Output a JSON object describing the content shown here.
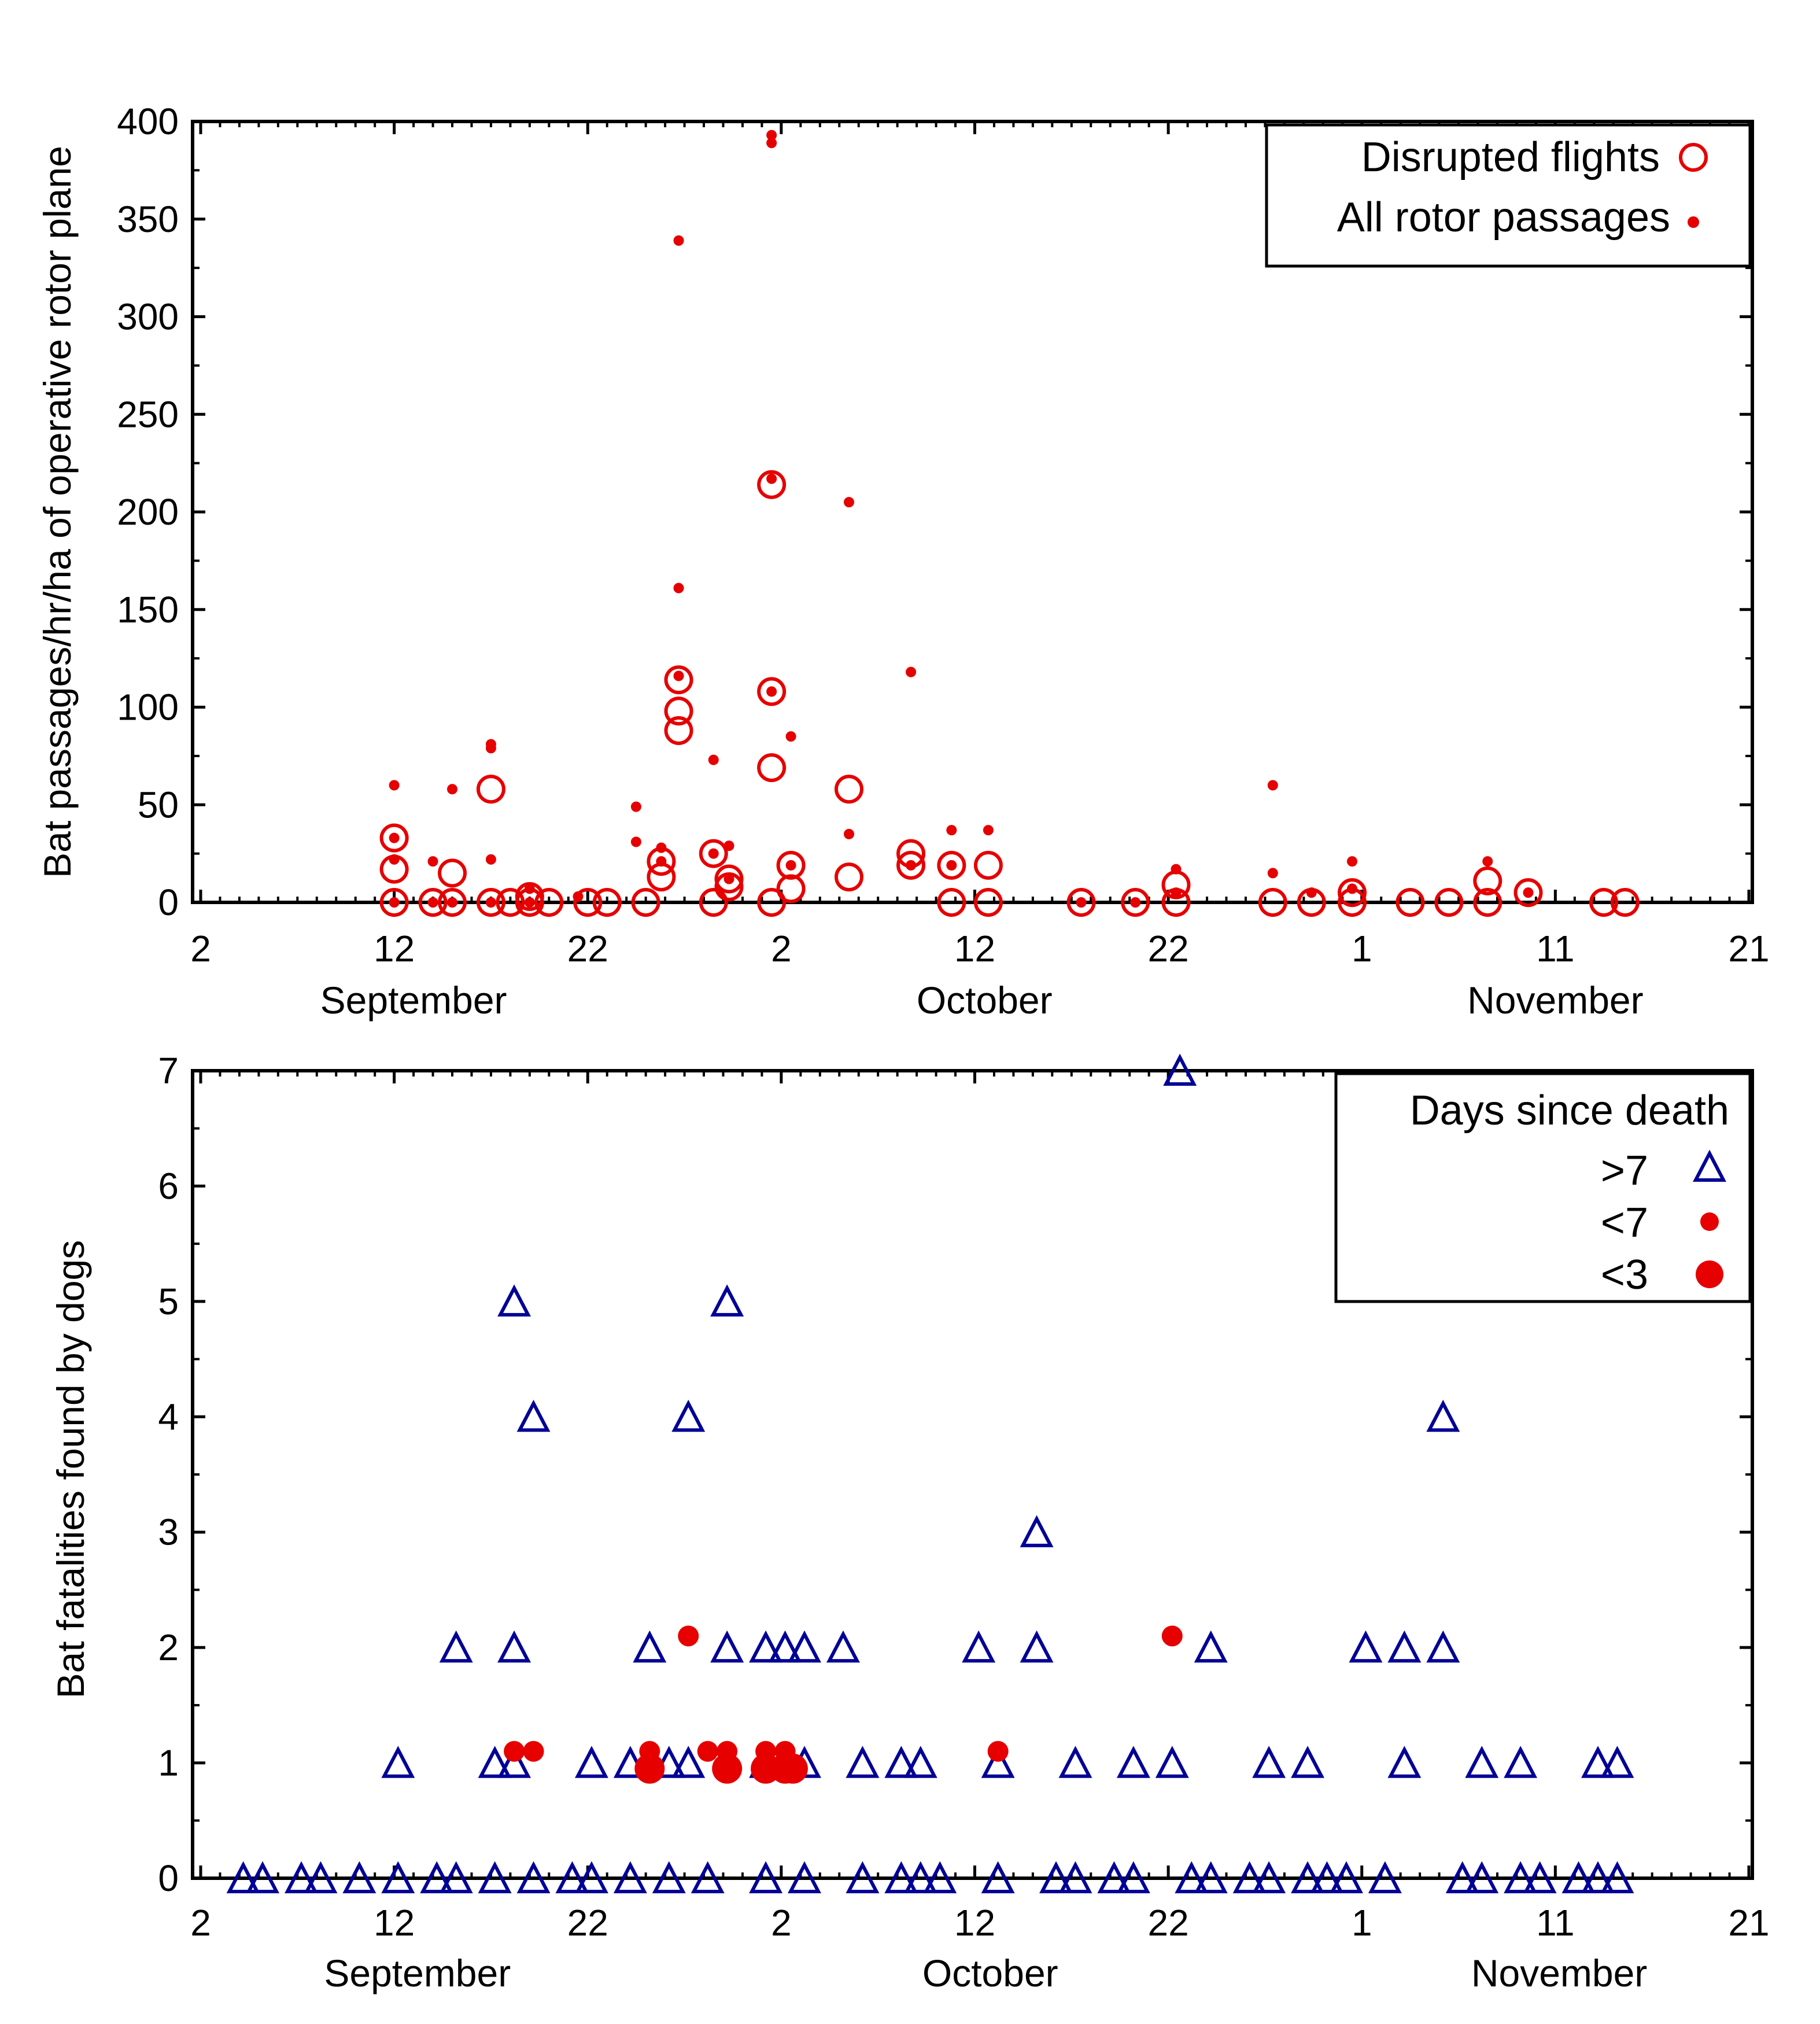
{
  "colors": {
    "red": "#e60000",
    "blue": "#000096",
    "axis": "#000000",
    "background": "#ffffff"
  },
  "chart_data": [
    {
      "type": "scatter",
      "id": "top",
      "ylabel": "Bat passages/hr/ha of operative rotor plane",
      "ylim": [
        0,
        400
      ],
      "yticks": [
        0,
        50,
        100,
        150,
        200,
        250,
        300,
        350,
        400
      ],
      "ytick_labels": [
        "0",
        "50",
        "100",
        "150",
        "200",
        "250",
        "300",
        "350",
        "400"
      ],
      "xlim_day": [
        0,
        80
      ],
      "xticks_day": [
        0,
        10,
        20,
        30,
        40,
        50,
        60,
        70,
        80
      ],
      "xtick_labels": [
        "2",
        "12",
        "22",
        "2",
        "12",
        "22",
        "1",
        "11",
        "21"
      ],
      "months": [
        {
          "label": "September",
          "day": 11
        },
        {
          "label": "October",
          "day": 40.5
        },
        {
          "label": "November",
          "day": 70
        }
      ],
      "legend": {
        "position": "top-right",
        "entries": [
          {
            "label": "Disrupted flights",
            "marker": "open-circle"
          },
          {
            "label": "All rotor passages",
            "marker": "small-dot"
          }
        ]
      },
      "series": [
        {
          "name": "Disrupted flights",
          "marker": "open-circle",
          "points": [
            [
              10,
              0
            ],
            [
              10,
              17
            ],
            [
              10,
              33
            ],
            [
              12,
              0
            ],
            [
              13,
              0
            ],
            [
              13,
              15
            ],
            [
              15,
              0
            ],
            [
              15,
              58
            ],
            [
              16,
              0
            ],
            [
              17,
              0
            ],
            [
              17,
              3
            ],
            [
              18,
              0
            ],
            [
              20,
              0
            ],
            [
              21,
              0
            ],
            [
              23,
              0
            ],
            [
              23.8,
              13
            ],
            [
              23.8,
              21
            ],
            [
              24.7,
              88
            ],
            [
              24.7,
              98
            ],
            [
              24.7,
              114
            ],
            [
              26.5,
              0
            ],
            [
              26.5,
              25
            ],
            [
              27.3,
              8
            ],
            [
              27.3,
              12
            ],
            [
              29.5,
              0
            ],
            [
              29.5,
              69
            ],
            [
              29.5,
              108
            ],
            [
              29.5,
              214
            ],
            [
              30.5,
              7
            ],
            [
              30.5,
              19
            ],
            [
              33.5,
              13
            ],
            [
              33.5,
              58
            ],
            [
              36.7,
              19
            ],
            [
              36.7,
              25
            ],
            [
              38.8,
              0
            ],
            [
              38.8,
              19
            ],
            [
              40.7,
              0
            ],
            [
              40.7,
              19
            ],
            [
              45.5,
              0
            ],
            [
              48.3,
              0
            ],
            [
              50.4,
              0
            ],
            [
              50.4,
              9
            ],
            [
              55.4,
              0
            ],
            [
              57.4,
              0
            ],
            [
              59.5,
              0
            ],
            [
              59.5,
              5
            ],
            [
              62.5,
              0
            ],
            [
              64.5,
              0
            ],
            [
              66.5,
              0
            ],
            [
              66.5,
              11
            ],
            [
              68.6,
              5
            ],
            [
              72.5,
              0
            ],
            [
              73.6,
              0
            ]
          ]
        },
        {
          "name": "All rotor passages",
          "marker": "small-dot",
          "points": [
            [
              10,
              0
            ],
            [
              10,
              22
            ],
            [
              10,
              33
            ],
            [
              10,
              60
            ],
            [
              12,
              0
            ],
            [
              12,
              21
            ],
            [
              13,
              0
            ],
            [
              13,
              58
            ],
            [
              15,
              0
            ],
            [
              15,
              22
            ],
            [
              15,
              79
            ],
            [
              15,
              81
            ],
            [
              17,
              0
            ],
            [
              17,
              7
            ],
            [
              19.5,
              3
            ],
            [
              22.5,
              31
            ],
            [
              22.5,
              49
            ],
            [
              23.8,
              21
            ],
            [
              23.8,
              28
            ],
            [
              24.7,
              116
            ],
            [
              24.7,
              161
            ],
            [
              24.7,
              339
            ],
            [
              26.5,
              25
            ],
            [
              26.5,
              73
            ],
            [
              27.3,
              12
            ],
            [
              27.3,
              29
            ],
            [
              29.5,
              108
            ],
            [
              29.5,
              217
            ],
            [
              29.5,
              389
            ],
            [
              29.5,
              393
            ],
            [
              30.5,
              19
            ],
            [
              30.5,
              85
            ],
            [
              33.5,
              35
            ],
            [
              33.5,
              205
            ],
            [
              36.7,
              19
            ],
            [
              36.7,
              118
            ],
            [
              38.8,
              19
            ],
            [
              38.8,
              37
            ],
            [
              40.7,
              37
            ],
            [
              45.5,
              0
            ],
            [
              48.3,
              0
            ],
            [
              50.4,
              5
            ],
            [
              50.4,
              17
            ],
            [
              55.4,
              15
            ],
            [
              55.4,
              60
            ],
            [
              57.4,
              5
            ],
            [
              59.5,
              7
            ],
            [
              59.5,
              21
            ],
            [
              66.5,
              21
            ],
            [
              68.6,
              5
            ]
          ]
        }
      ]
    },
    {
      "type": "scatter",
      "id": "bottom",
      "ylabel": "Bat fatalities found by dogs",
      "ylim": [
        0,
        7
      ],
      "yticks": [
        0,
        1,
        2,
        3,
        4,
        5,
        6,
        7
      ],
      "ytick_labels": [
        "0",
        "1",
        "2",
        "3",
        "4",
        "5",
        "6",
        "7"
      ],
      "xlim_day": [
        0,
        80
      ],
      "xticks_day": [
        0,
        10,
        20,
        30,
        40,
        50,
        60,
        70,
        80
      ],
      "xtick_labels": [
        "2",
        "12",
        "22",
        "2",
        "12",
        "22",
        "1",
        "11",
        "21"
      ],
      "months": [
        {
          "label": "September",
          "day": 11.2
        },
        {
          "label": "October",
          "day": 40.8
        },
        {
          "label": "November",
          "day": 70.2
        }
      ],
      "legend": {
        "title": "Days since death",
        "position": "top-right",
        "entries": [
          {
            "label": ">7",
            "marker": "triangle"
          },
          {
            "label": "<7",
            "marker": "small-filled-circle"
          },
          {
            "label": "<3",
            "marker": "large-filled-circle"
          }
        ]
      },
      "series": [
        {
          "name": ">7",
          "marker": "triangle",
          "points": [
            [
              2.2,
              0
            ],
            [
              3.2,
              0
            ],
            [
              5.2,
              0
            ],
            [
              6.2,
              0
            ],
            [
              8.2,
              0
            ],
            [
              10.2,
              0
            ],
            [
              12.2,
              0
            ],
            [
              13.2,
              0
            ],
            [
              15.2,
              0
            ],
            [
              17.2,
              0
            ],
            [
              19.2,
              0
            ],
            [
              20.2,
              0
            ],
            [
              22.2,
              0
            ],
            [
              24.2,
              0
            ],
            [
              26.2,
              0
            ],
            [
              29.2,
              0
            ],
            [
              31.2,
              0
            ],
            [
              34.2,
              0
            ],
            [
              36.2,
              0
            ],
            [
              37.2,
              0
            ],
            [
              38.2,
              0
            ],
            [
              41.2,
              0
            ],
            [
              44.2,
              0
            ],
            [
              45.2,
              0
            ],
            [
              47.2,
              0
            ],
            [
              48.2,
              0
            ],
            [
              51.2,
              0
            ],
            [
              52.2,
              0
            ],
            [
              54.2,
              0
            ],
            [
              55.2,
              0
            ],
            [
              57.2,
              0
            ],
            [
              58.2,
              0
            ],
            [
              59.2,
              0
            ],
            [
              61.2,
              0
            ],
            [
              65.2,
              0
            ],
            [
              66.2,
              0
            ],
            [
              68.2,
              0
            ],
            [
              69.2,
              0
            ],
            [
              71.2,
              0
            ],
            [
              72.2,
              0
            ],
            [
              73.2,
              0
            ],
            [
              10.2,
              1
            ],
            [
              15.2,
              1
            ],
            [
              16.2,
              1
            ],
            [
              20.2,
              1
            ],
            [
              22.2,
              1
            ],
            [
              24.2,
              1
            ],
            [
              25.2,
              1
            ],
            [
              29.2,
              1
            ],
            [
              31.2,
              1
            ],
            [
              34.2,
              1
            ],
            [
              36.2,
              1
            ],
            [
              37.2,
              1
            ],
            [
              41.2,
              1
            ],
            [
              45.2,
              1
            ],
            [
              48.2,
              1
            ],
            [
              50.2,
              1
            ],
            [
              55.2,
              1
            ],
            [
              57.2,
              1
            ],
            [
              62.2,
              1
            ],
            [
              66.2,
              1
            ],
            [
              68.2,
              1
            ],
            [
              72.2,
              1
            ],
            [
              73.2,
              1
            ],
            [
              13.2,
              2
            ],
            [
              16.2,
              2
            ],
            [
              23.2,
              2
            ],
            [
              27.2,
              2
            ],
            [
              29.2,
              2
            ],
            [
              30.2,
              2
            ],
            [
              31.2,
              2
            ],
            [
              33.2,
              2
            ],
            [
              40.2,
              2
            ],
            [
              43.2,
              2
            ],
            [
              52.2,
              2
            ],
            [
              60.2,
              2
            ],
            [
              62.2,
              2
            ],
            [
              64.2,
              2
            ],
            [
              43.2,
              3
            ],
            [
              25.2,
              4
            ],
            [
              17.2,
              4
            ],
            [
              64.2,
              4
            ],
            [
              16.2,
              5
            ],
            [
              27.2,
              5
            ],
            [
              50.6,
              7
            ]
          ]
        },
        {
          "name": "<7",
          "marker": "small-filled-circle",
          "points": [
            [
              16.2,
              1.1
            ],
            [
              17.2,
              1.1
            ],
            [
              23.2,
              1.1
            ],
            [
              26.2,
              1.1
            ],
            [
              27.2,
              1.1
            ],
            [
              29.2,
              1.1
            ],
            [
              30.2,
              1.1
            ],
            [
              41.2,
              1.1
            ],
            [
              25.2,
              2.1
            ],
            [
              50.2,
              2.1
            ]
          ]
        },
        {
          "name": "<3",
          "marker": "large-filled-circle",
          "points": [
            [
              23.2,
              0.95
            ],
            [
              27.2,
              0.95
            ],
            [
              29.2,
              0.95
            ],
            [
              30.2,
              0.95
            ],
            [
              30.6,
              0.95
            ]
          ]
        }
      ]
    }
  ]
}
